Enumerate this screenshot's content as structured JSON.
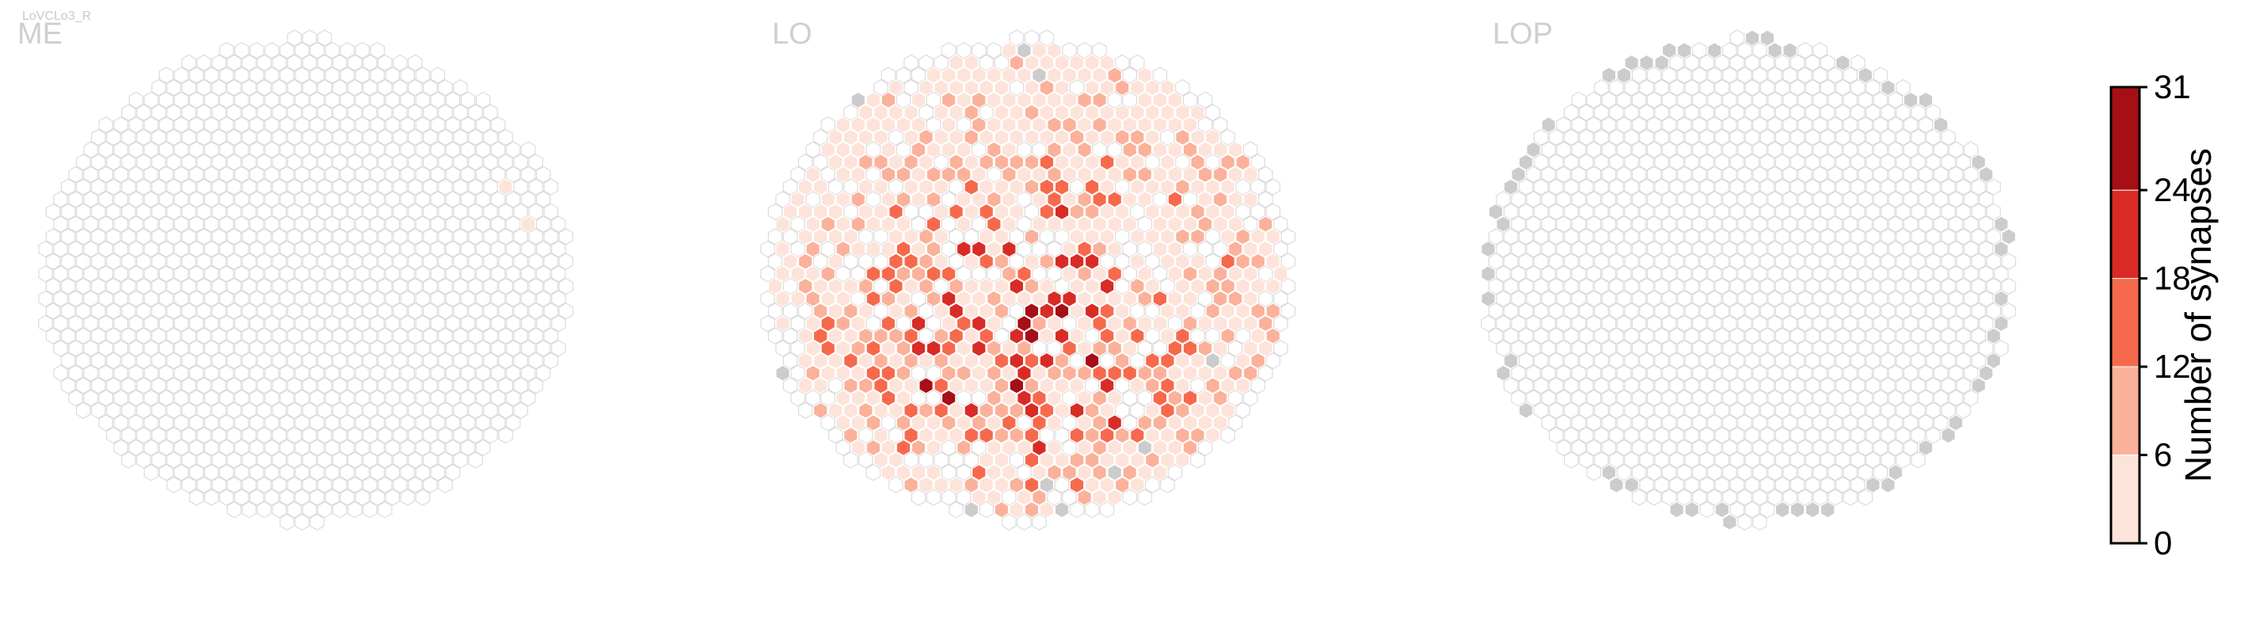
{
  "cell_type": "LoVCLo3_R",
  "chart_data": [
    {
      "type": "heatmap",
      "panel": "ME",
      "subplot_title": "ME",
      "grid": "hexagonal columns, circular layout",
      "filled_cells": [
        {
          "col": 31,
          "row": 12,
          "value": 4
        },
        {
          "col": 32,
          "row": 15,
          "value": 3
        }
      ],
      "no_data_cells": []
    },
    {
      "type": "heatmap",
      "panel": "LO",
      "subplot_title": "LO",
      "grid": "hexagonal columns, circular layout",
      "value_distribution_note": "many columns 1-31 synapses, densest in lower-center",
      "max_value": 31,
      "no_data_cells": [
        {
          "col": 17,
          "row": 1
        },
        {
          "col": 18,
          "row": 3
        },
        {
          "col": 5,
          "row": 4
        },
        {
          "col": 6,
          "row": 5
        },
        {
          "col": 1,
          "row": 12
        },
        {
          "col": 0,
          "row": 20
        },
        {
          "col": 1,
          "row": 27
        },
        {
          "col": 30,
          "row": 26
        },
        {
          "col": 25,
          "row": 33
        },
        {
          "col": 20,
          "row": 38
        },
        {
          "col": 8,
          "row": 38
        },
        {
          "col": 10,
          "row": 38
        },
        {
          "col": 12,
          "row": 38
        },
        {
          "col": 14,
          "row": 38
        },
        {
          "col": 19,
          "row": 36
        },
        {
          "col": 23,
          "row": 35
        }
      ]
    },
    {
      "type": "heatmap",
      "panel": "LOP",
      "subplot_title": "LOP",
      "grid": "hexagonal columns, circular layout",
      "filled_cells": [],
      "no_data_cells": "outer ring of columns shown in gray"
    }
  ],
  "colorbar": {
    "label": "Number of synapses",
    "ticks": [
      "0",
      "6",
      "12",
      "18",
      "24",
      "31"
    ],
    "tick_values": [
      0,
      6,
      12,
      18,
      24,
      31
    ],
    "range": [
      0,
      31
    ],
    "bin_colors": [
      "#fde3d9",
      "#fbb19a",
      "#f7694c",
      "#d92b26",
      "#a50f15"
    ]
  },
  "colors": {
    "empty_stroke": "#dcdcdc",
    "no_data": "#cccccc",
    "cell_stroke": "#ffffff",
    "text": "#000000"
  }
}
